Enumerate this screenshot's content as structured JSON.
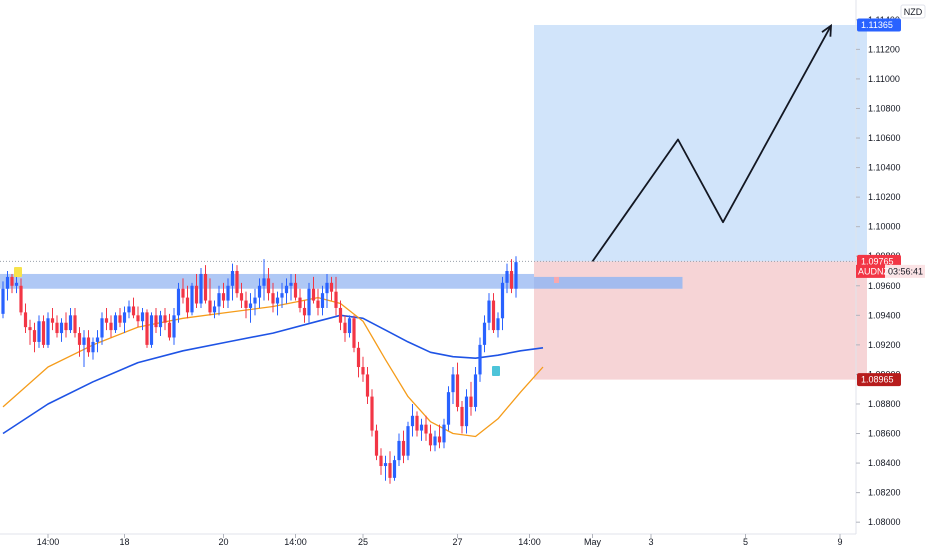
{
  "currency": "NZD",
  "symbol": "AUDNZD",
  "countdown": "03:56:41",
  "price_labels": {
    "target": "1.11365",
    "current": "1.09765",
    "stop": "1.08965"
  },
  "colors": {
    "up": "#2962ff",
    "down": "#f23645",
    "ema_fast": "#f59c1a",
    "ema_slow": "#1e53e5",
    "zone": "#94b6f2",
    "profit": "#cfe3fa",
    "loss": "#f5d2d4",
    "target_tag": "#2962ff",
    "current_tag": "#f23645",
    "stop_tag": "#b71c1c"
  },
  "chart_data": {
    "type": "candlestick",
    "y_ticks": [
      "1.08000",
      "1.08200",
      "1.08400",
      "1.08600",
      "1.08800",
      "1.09000",
      "1.09200",
      "1.09400",
      "1.09600",
      "1.09800",
      "1.10000",
      "1.10200",
      "1.10400",
      "1.10600",
      "1.10800",
      "1.11000",
      "1.11200",
      "1.11400"
    ],
    "ylim": [
      1.0792,
      1.1148
    ],
    "x_ticks": [
      {
        "label": "14:00",
        "i": 10
      },
      {
        "label": "18",
        "i": 27
      },
      {
        "label": "20",
        "i": 49
      },
      {
        "label": "14:00",
        "i": 65
      },
      {
        "label": "25",
        "i": 80
      },
      {
        "label": "27",
        "i": 101
      },
      {
        "label": "14:00",
        "i": 117
      },
      {
        "label": "May",
        "i": 131
      },
      {
        "label": "3",
        "i": 144
      },
      {
        "label": "5",
        "i": 165
      },
      {
        "label": "9",
        "i": 186
      }
    ],
    "candles": [
      [
        1.0941,
        1.0963,
        1.0938,
        1.0958
      ],
      [
        1.0958,
        1.097,
        1.095,
        1.0966
      ],
      [
        1.0966,
        1.0968,
        1.0955,
        1.096
      ],
      [
        1.096,
        1.0966,
        1.0955,
        1.0962
      ],
      [
        1.096,
        1.0965,
        1.094,
        1.0942
      ],
      [
        1.0942,
        1.0948,
        1.0928,
        1.0932
      ],
      [
        1.0932,
        1.0937,
        1.092,
        1.093
      ],
      [
        1.093,
        1.0935,
        1.0915,
        1.0922
      ],
      [
        1.0922,
        1.094,
        1.0918,
        1.0936
      ],
      [
        1.0936,
        1.094,
        1.0918,
        1.092
      ],
      [
        1.092,
        1.0942,
        1.0918,
        1.0938
      ],
      [
        1.0938,
        1.0945,
        1.093,
        1.0935
      ],
      [
        1.0935,
        1.094,
        1.0925,
        1.0928
      ],
      [
        1.0928,
        1.0938,
        1.0922,
        1.0935
      ],
      [
        1.0935,
        1.0942,
        1.0925,
        1.093
      ],
      [
        1.093,
        1.0945,
        1.0928,
        1.094
      ],
      [
        1.094,
        1.0945,
        1.0925,
        1.0928
      ],
      [
        1.0928,
        1.0932,
        1.0912,
        1.092
      ],
      [
        1.092,
        1.093,
        1.0905,
        1.0925
      ],
      [
        1.0925,
        1.093,
        1.0912,
        1.0915
      ],
      [
        1.0915,
        1.0925,
        1.091,
        1.0922
      ],
      [
        1.0922,
        1.093,
        1.0915,
        1.0925
      ],
      [
        1.0925,
        1.0942,
        1.092,
        1.0938
      ],
      [
        1.0938,
        1.0945,
        1.093,
        1.0935
      ],
      [
        1.0935,
        1.094,
        1.0925,
        1.093
      ],
      [
        1.093,
        1.0942,
        1.0928,
        1.094
      ],
      [
        1.094,
        1.0945,
        1.0932,
        1.0935
      ],
      [
        1.0935,
        1.0946,
        1.0928,
        1.0942
      ],
      [
        1.0942,
        1.095,
        1.0938,
        1.0946
      ],
      [
        1.0946,
        1.0952,
        1.0938,
        1.094
      ],
      [
        1.094,
        1.0946,
        1.0932,
        1.0936
      ],
      [
        1.0936,
        1.0945,
        1.093,
        1.0942
      ],
      [
        1.0942,
        1.0944,
        1.0918,
        1.092
      ],
      [
        1.092,
        1.0942,
        1.0918,
        1.094
      ],
      [
        1.094,
        1.0945,
        1.0928,
        1.0932
      ],
      [
        1.0932,
        1.0943,
        1.0926,
        1.094
      ],
      [
        1.094,
        1.0945,
        1.093,
        1.0935
      ],
      [
        1.0935,
        1.0941,
        1.0923,
        1.0925
      ],
      [
        1.0925,
        1.0945,
        1.092,
        1.094
      ],
      [
        1.094,
        1.0962,
        1.0935,
        1.0958
      ],
      [
        1.0958,
        1.0965,
        1.0948,
        1.0952
      ],
      [
        1.0952,
        1.096,
        1.0938,
        1.0942
      ],
      [
        1.0942,
        1.0962,
        1.094,
        1.096
      ],
      [
        1.096,
        1.0968,
        1.0945,
        1.0948
      ],
      [
        1.0948,
        1.0972,
        1.0945,
        1.0968
      ],
      [
        1.0968,
        1.0974,
        1.0948,
        1.095
      ],
      [
        1.095,
        1.0965,
        1.094,
        1.0942
      ],
      [
        1.0942,
        1.095,
        1.0938,
        1.0946
      ],
      [
        1.0946,
        1.096,
        1.094,
        1.0955
      ],
      [
        1.0955,
        1.0962,
        1.0945,
        1.095
      ],
      [
        1.095,
        1.0965,
        1.0945,
        1.096
      ],
      [
        1.096,
        1.0975,
        1.095,
        1.097
      ],
      [
        1.097,
        1.0974,
        1.0952,
        1.0955
      ],
      [
        1.0955,
        1.0962,
        1.0945,
        1.095
      ],
      [
        1.095,
        1.0956,
        1.0938,
        1.0945
      ],
      [
        1.0945,
        1.0955,
        1.0935,
        1.0948
      ],
      [
        1.0948,
        1.0958,
        1.094,
        1.0952
      ],
      [
        1.0952,
        1.0965,
        1.0945,
        1.096
      ],
      [
        1.096,
        1.0978,
        1.095,
        1.0965
      ],
      [
        1.0965,
        1.0972,
        1.095,
        1.0955
      ],
      [
        1.0955,
        1.0962,
        1.0942,
        1.0948
      ],
      [
        1.0948,
        1.0956,
        1.094,
        1.0952
      ],
      [
        1.0952,
        1.0962,
        1.0945,
        1.0955
      ],
      [
        1.0955,
        1.0965,
        1.0948,
        1.096
      ],
      [
        1.096,
        1.0968,
        1.095,
        1.0962
      ],
      [
        1.0962,
        1.0968,
        1.095,
        1.0952
      ],
      [
        1.0952,
        1.0958,
        1.0942,
        1.0945
      ],
      [
        1.0945,
        1.095,
        1.0935,
        1.094
      ],
      [
        1.094,
        1.0962,
        1.0935,
        1.0958
      ],
      [
        1.0958,
        1.0966,
        1.0948,
        1.095
      ],
      [
        1.095,
        1.0958,
        1.094,
        1.0945
      ],
      [
        1.0945,
        1.096,
        1.094,
        1.0955
      ],
      [
        1.0955,
        1.0968,
        1.0945,
        1.0962
      ],
      [
        1.0962,
        1.0966,
        1.095,
        1.0956
      ],
      [
        1.0956,
        1.0966,
        1.094,
        1.0945
      ],
      [
        1.0945,
        1.095,
        1.093,
        1.0935
      ],
      [
        1.0935,
        1.094,
        1.0922,
        1.0928
      ],
      [
        1.0928,
        1.094,
        1.0925,
        1.0938
      ],
      [
        1.0938,
        1.094,
        1.0915,
        1.0918
      ],
      [
        1.0918,
        1.0922,
        1.0898,
        1.0905
      ],
      [
        1.0905,
        1.0912,
        1.0895,
        1.09
      ],
      [
        1.09,
        1.0905,
        1.088,
        1.0885
      ],
      [
        1.0885,
        1.089,
        1.0858,
        1.0862
      ],
      [
        1.0862,
        1.0866,
        1.0842,
        1.0845
      ],
      [
        1.0845,
        1.085,
        1.0832,
        1.0838
      ],
      [
        1.0838,
        1.0845,
        1.0828,
        1.084
      ],
      [
        1.084,
        1.0848,
        1.0826,
        1.083
      ],
      [
        1.083,
        1.0845,
        1.0828,
        1.0842
      ],
      [
        1.0842,
        1.086,
        1.0838,
        1.0855
      ],
      [
        1.0855,
        1.0862,
        1.084,
        1.0845
      ],
      [
        1.0845,
        1.0868,
        1.0842,
        1.0865
      ],
      [
        1.0865,
        1.088,
        1.0858,
        1.0872
      ],
      [
        1.0872,
        1.0875,
        1.0858,
        1.0862
      ],
      [
        1.0862,
        1.087,
        1.0855,
        1.0866
      ],
      [
        1.0866,
        1.0872,
        1.0855,
        1.086
      ],
      [
        1.086,
        1.0866,
        1.0848,
        1.0852
      ],
      [
        1.0852,
        1.0862,
        1.0848,
        1.0858
      ],
      [
        1.0858,
        1.0866,
        1.085,
        1.0854
      ],
      [
        1.0854,
        1.087,
        1.085,
        1.0866
      ],
      [
        1.0866,
        1.0892,
        1.0862,
        1.0888
      ],
      [
        1.0888,
        1.0905,
        1.088,
        1.09
      ],
      [
        1.09,
        1.0908,
        1.0875,
        1.0878
      ],
      [
        1.0878,
        1.0882,
        1.086,
        1.0865
      ],
      [
        1.0865,
        1.089,
        1.086,
        1.0885
      ],
      [
        1.0885,
        1.0895,
        1.0872,
        1.0878
      ],
      [
        1.0878,
        1.0905,
        1.0875,
        1.09
      ],
      [
        1.09,
        1.0925,
        1.0895,
        1.092
      ],
      [
        1.092,
        1.094,
        1.0915,
        1.0935
      ],
      [
        1.0935,
        1.0955,
        1.093,
        1.095
      ],
      [
        1.095,
        1.0955,
        1.0928,
        1.093
      ],
      [
        1.093,
        1.0942,
        1.0925,
        1.0938
      ],
      [
        1.0938,
        1.0966,
        1.093,
        1.0962
      ],
      [
        1.0962,
        1.0975,
        1.0955,
        1.097
      ],
      [
        1.097,
        1.0978,
        1.0955,
        1.0958
      ],
      [
        1.0958,
        1.098,
        1.0952,
        1.0976
      ]
    ],
    "ema_fast": [
      [
        0,
        1.0878
      ],
      [
        10,
        1.0905
      ],
      [
        20,
        1.092
      ],
      [
        30,
        1.0932
      ],
      [
        40,
        1.0938
      ],
      [
        50,
        1.0942
      ],
      [
        60,
        1.0946
      ],
      [
        70,
        1.0952
      ],
      [
        75,
        1.0948
      ],
      [
        80,
        1.0936
      ],
      [
        85,
        1.091
      ],
      [
        90,
        1.0885
      ],
      [
        95,
        1.0868
      ],
      [
        100,
        1.086
      ],
      [
        105,
        1.0858
      ],
      [
        110,
        1.087
      ],
      [
        115,
        1.0888
      ],
      [
        120,
        1.0905
      ]
    ],
    "ema_slow": [
      [
        0,
        1.086
      ],
      [
        10,
        1.088
      ],
      [
        20,
        1.0895
      ],
      [
        30,
        1.0908
      ],
      [
        40,
        1.0916
      ],
      [
        50,
        1.0922
      ],
      [
        60,
        1.0928
      ],
      [
        70,
        1.0936
      ],
      [
        75,
        1.094
      ],
      [
        80,
        1.0938
      ],
      [
        85,
        1.093
      ],
      [
        90,
        1.0922
      ],
      [
        95,
        1.0915
      ],
      [
        100,
        1.0912
      ],
      [
        105,
        1.0911
      ],
      [
        110,
        1.0913
      ],
      [
        115,
        1.0916
      ],
      [
        120,
        1.0918
      ]
    ],
    "zone": [
      1.0958,
      1.0968
    ],
    "position": {
      "entry": 1.09765,
      "target": 1.11365,
      "stop": 1.08965,
      "start_i": 118,
      "end_i": 192
    },
    "small_zone": {
      "low": 1.0958,
      "high": 1.0966,
      "start_i": 118,
      "end_i": 151
    },
    "path": [
      [
        131,
        1.09765
      ],
      [
        150,
        1.1059
      ],
      [
        160,
        1.1003
      ],
      [
        184,
        1.1136
      ]
    ]
  }
}
